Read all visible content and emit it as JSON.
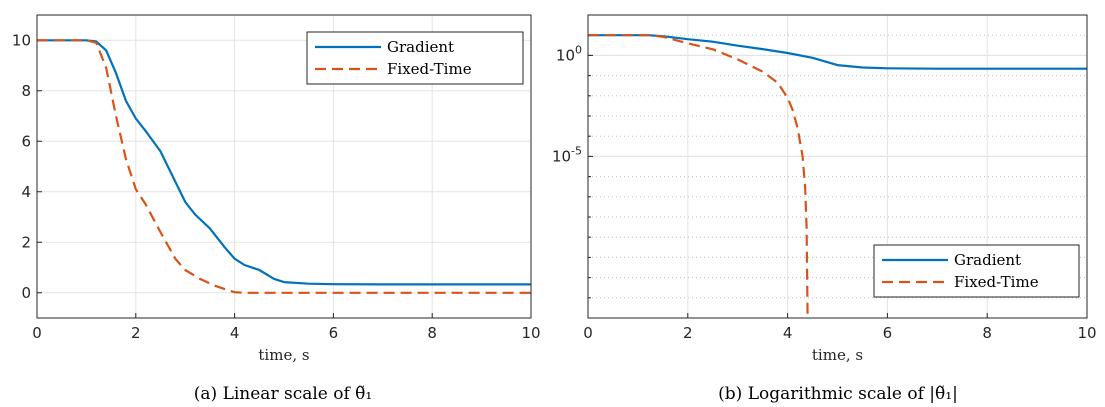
{
  "colors": {
    "gradient": "#0072BD",
    "fixed_time": "#D95319",
    "grid": "#e3e3e3",
    "axis": "#262626"
  },
  "chart_data": [
    {
      "type": "line",
      "caption": "(a) Linear scale of θ̃₁",
      "xlabel": "time, s",
      "xlim": [
        0,
        10
      ],
      "ylim": [
        -1,
        11
      ],
      "xticks": [
        "0",
        "2",
        "4",
        "6",
        "8",
        "10"
      ],
      "yticks": [
        "0",
        "2",
        "4",
        "6",
        "8",
        "10"
      ],
      "grid": true,
      "legend": "top-right",
      "series": [
        {
          "name": "Gradient",
          "style": "solid",
          "x": [
            0,
            1.0,
            1.2,
            1.4,
            1.6,
            1.8,
            2.0,
            2.2,
            2.5,
            2.8,
            3.0,
            3.2,
            3.5,
            3.8,
            4.0,
            4.2,
            4.5,
            4.8,
            5.0,
            5.5,
            6.0,
            7.0,
            8.0,
            9.0,
            10.0
          ],
          "y": [
            10.0,
            10.0,
            9.95,
            9.6,
            8.7,
            7.6,
            6.9,
            6.4,
            5.6,
            4.4,
            3.6,
            3.1,
            2.55,
            1.8,
            1.35,
            1.1,
            0.9,
            0.55,
            0.42,
            0.36,
            0.34,
            0.33,
            0.33,
            0.33,
            0.33
          ]
        },
        {
          "name": "Fixed-Time",
          "style": "dashed",
          "x": [
            0,
            1.0,
            1.2,
            1.4,
            1.6,
            1.8,
            2.0,
            2.2,
            2.5,
            2.8,
            3.0,
            3.3,
            3.6,
            3.9,
            4.0,
            4.2,
            5.0,
            6.0,
            8.0,
            10.0
          ],
          "y": [
            10.0,
            10.0,
            9.9,
            8.9,
            7.0,
            5.3,
            4.1,
            3.5,
            2.4,
            1.35,
            0.9,
            0.55,
            0.28,
            0.08,
            0.02,
            0.0,
            0.0,
            0.0,
            0.0,
            0.0
          ]
        }
      ]
    },
    {
      "type": "line",
      "caption": "(b) Logarithmic scale of |θ̃₁|",
      "xlabel": "time, s",
      "xlim": [
        0,
        10
      ],
      "yscale": "log",
      "ylim_exponent": [
        -13,
        2
      ],
      "xticks": [
        "0",
        "2",
        "4",
        "6",
        "8",
        "10"
      ],
      "yticks": [
        {
          "base": "10",
          "exp": "0",
          "value": 0
        },
        {
          "base": "10",
          "exp": "-5",
          "value": -5
        }
      ],
      "grid": true,
      "legend": "bottom-right",
      "series": [
        {
          "name": "Gradient",
          "style": "solid",
          "x": [
            0,
            1.2,
            1.5,
            2.0,
            2.5,
            3.0,
            3.5,
            4.0,
            4.5,
            5.0,
            5.5,
            6.0,
            7.0,
            8.0,
            10.0
          ],
          "log10_y": [
            1.0,
            1.0,
            0.95,
            0.8,
            0.68,
            0.48,
            0.31,
            0.12,
            -0.12,
            -0.48,
            -0.6,
            -0.64,
            -0.66,
            -0.66,
            -0.66
          ]
        },
        {
          "name": "Fixed-Time",
          "style": "dashed",
          "x": [
            0,
            1.2,
            1.5,
            2.0,
            2.5,
            3.0,
            3.5,
            3.8,
            4.0,
            4.1,
            4.2,
            4.3,
            4.35,
            4.38,
            4.4
          ],
          "log10_y": [
            1.0,
            1.0,
            0.92,
            0.6,
            0.3,
            -0.2,
            -0.8,
            -1.35,
            -2.1,
            -2.7,
            -3.6,
            -5.0,
            -6.5,
            -8.5,
            -13
          ]
        }
      ]
    }
  ]
}
